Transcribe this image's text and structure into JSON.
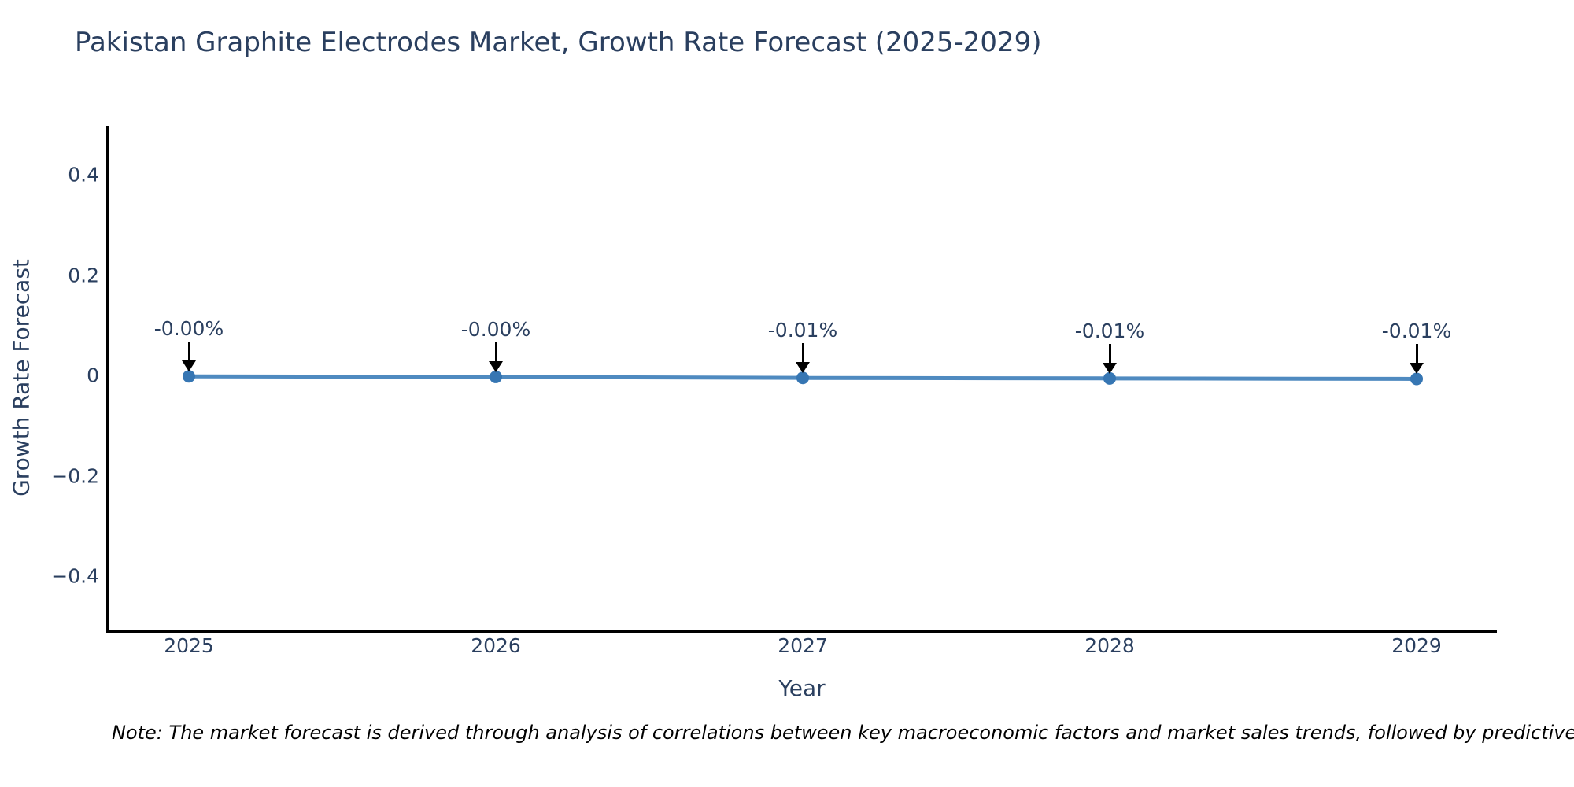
{
  "chart_data": {
    "type": "line",
    "title": "Pakistan Graphite Electrodes Market, Growth Rate Forecast (2025-2029)",
    "xlabel": "Year",
    "ylabel": "Growth Rate Forecast",
    "x": [
      2025,
      2026,
      2027,
      2028,
      2029
    ],
    "values": [
      -0.002,
      -0.003,
      -0.005,
      -0.006,
      -0.007
    ],
    "point_labels": [
      "-0.00%",
      "-0.00%",
      "-0.01%",
      "-0.01%",
      "-0.01%"
    ],
    "x_tick_labels": [
      "2025",
      "2026",
      "2027",
      "2028",
      "2029"
    ],
    "y_ticks": [
      0.4,
      0.2,
      0,
      -0.2,
      -0.4
    ],
    "y_tick_labels": [
      "0.4",
      "0.2",
      "0",
      "−0.2",
      "−0.4"
    ],
    "ylim": [
      -0.51,
      0.5
    ],
    "xlim": [
      2024.74,
      2029.26
    ],
    "grid": false,
    "legend": false,
    "line_color": "#4f8ac0",
    "marker_color": "#3676b3",
    "axis_line_color": "#000000",
    "text_color": "#2a3f5f",
    "annotation_arrow_color": "#000000"
  },
  "note": "Note: The market forecast is derived through analysis of correlations between key macroeconomic factors and market sales trends, followed by predictive modeling to project future sa"
}
